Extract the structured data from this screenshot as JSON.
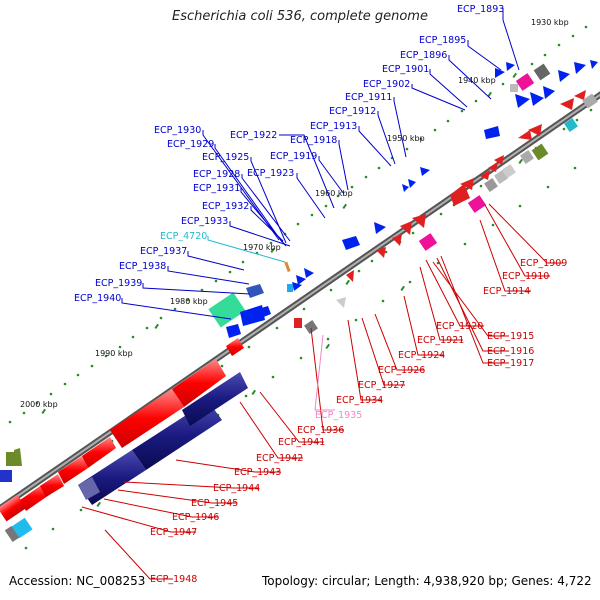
{
  "title": "Escherichia coli 536, complete genome",
  "accession": "Accession: NC_008253",
  "topology": "Topology: circular; Length: 4,938,920 bp; Genes: 4,722",
  "colors": {
    "forward_label": "#0000cc",
    "reverse_label": "#cc0000",
    "rna_label": "#22bbcc",
    "pseudo_label": "#ee88cc",
    "backbone": "#808080"
  },
  "kbp_ticks": [
    "1930 kbp",
    "1940 kbp",
    "1950 kbp",
    "1960 kbp",
    "1970 kbp",
    "1980 kbp",
    "1990 kbp",
    "2000 kbp"
  ],
  "forward_genes": [
    "ECP_1893",
    "ECP_1895",
    "ECP_1896",
    "ECP_1901",
    "ECP_1902",
    "ECP_1911",
    "ECP_1912",
    "ECP_1913",
    "ECP_1918",
    "ECP_1922",
    "ECP_1919",
    "ECP_1923",
    "ECP_1930",
    "ECP_1929",
    "ECP_1925",
    "ECP_1928",
    "ECP_1931",
    "ECP_1932",
    "ECP_1933",
    "ECP_1937",
    "ECP_1938",
    "ECP_1939",
    "ECP_1940"
  ],
  "rna_gene": "ECP_4720",
  "reverse_genes": [
    "ECP_1909",
    "ECP_1910",
    "ECP_1914",
    "ECP_1920",
    "ECP_1915",
    "ECP_1921",
    "ECP_1916",
    "ECP_1917",
    "ECP_1924",
    "ECP_1926",
    "ECP_1927",
    "ECP_1934",
    "ECP_1936",
    "ECP_1941",
    "ECP_1942",
    "ECP_1943",
    "ECP_1944",
    "ECP_1945",
    "ECP_1946",
    "ECP_1947",
    "ECP_1948"
  ],
  "pseudo_gene": "ECP_1935"
}
